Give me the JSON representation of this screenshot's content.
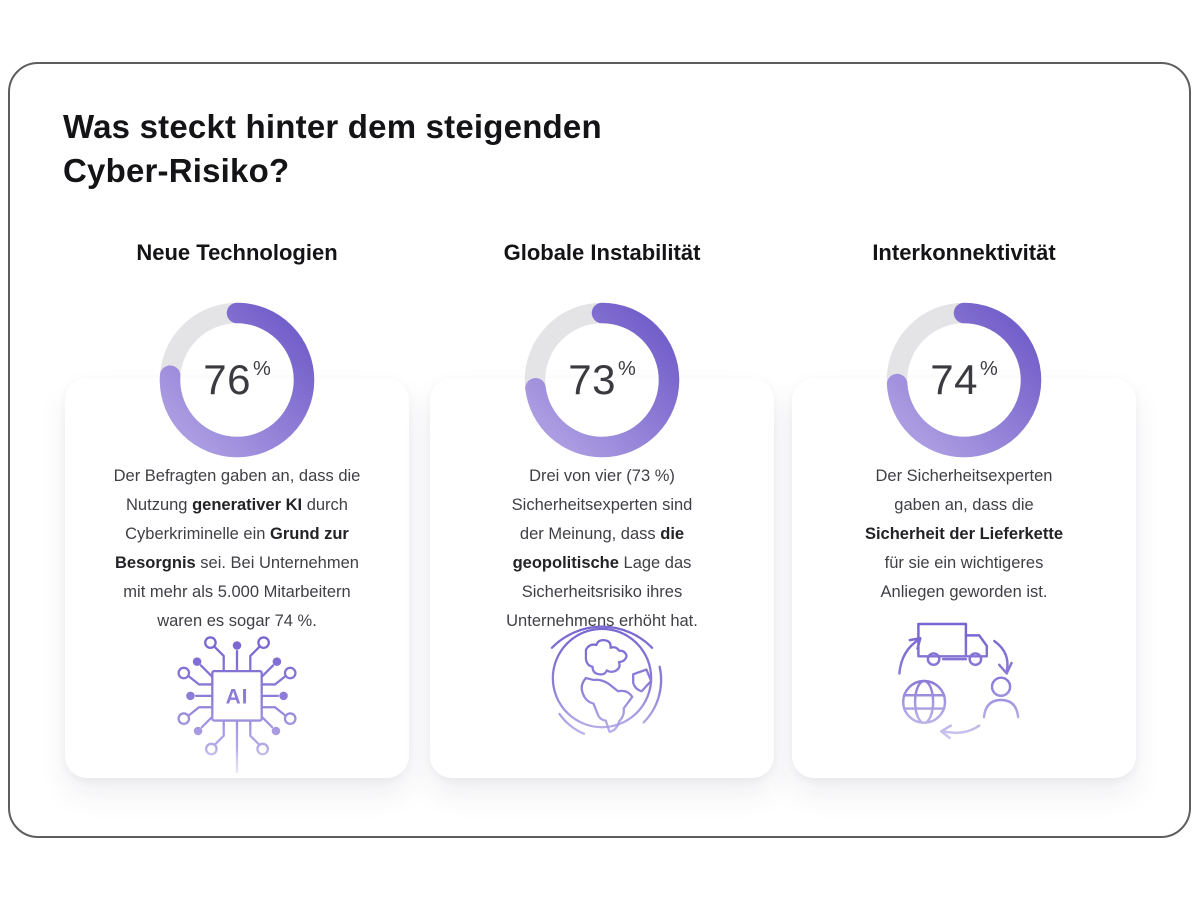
{
  "page": {
    "title": "Was steckt hinter dem steigenden\nCyber-Risiko?"
  },
  "colors": {
    "frame_border": "#5e5e5e",
    "heading": "#141416",
    "body": "#3f3f46",
    "body_bold": "#232327",
    "pct": "#3a3a40",
    "ring_track": "#e4e4e7",
    "ring_start": "#7460ca",
    "ring_end": "#ab9ce2",
    "icon_dark": "#7562cf",
    "icon_mid": "#8f7ed8",
    "icon_light": "#b5aae8",
    "icon_faint": "#d9d4f3"
  },
  "cards": [
    {
      "heading": "Neue Technologien",
      "percent": 76,
      "percent_suffix": "%",
      "icon": "ai-chip-icon",
      "ai_chip_label": "AI",
      "text_segments": [
        {
          "text": "Der Befragten gaben an, dass die\nNutzung "
        },
        {
          "text": "generativer KI",
          "bold": true
        },
        {
          "text": " durch\nCyberkriminelle ein "
        },
        {
          "text": "Grund zur\nBesorgnis",
          "bold": true
        },
        {
          "text": " sei. Bei Unternehmen\nmit mehr als 5.000 Mitarbeitern\nwaren es sogar 74 %."
        }
      ]
    },
    {
      "heading": "Globale Instabilität",
      "percent": 73,
      "percent_suffix": "%",
      "icon": "globe-icon",
      "text_segments": [
        {
          "text": "Drei von vier (73 %)\nSicherheitsexperten sind\nder Meinung, dass "
        },
        {
          "text": "die\ngeopolitische",
          "bold": true
        },
        {
          "text": " Lage das\nSicherheitsrisiko ihres\nUnternehmens erhöht hat."
        }
      ]
    },
    {
      "heading": "Interkonnektivität",
      "percent": 74,
      "percent_suffix": "%",
      "icon": "supply-chain-icon",
      "text_segments": [
        {
          "text": "Der Sicherheitsexperten\ngaben an, dass die\n"
        },
        {
          "text": "Sicherheit der Lieferkette",
          "bold": true
        },
        {
          "text": "\nfür sie ein wichtigeres\nAnliegen geworden ist."
        }
      ]
    }
  ],
  "chart_data": [
    {
      "type": "pie",
      "subtype": "donut",
      "title": "Neue Technologien",
      "labels": [
        "Anteil",
        "Rest"
      ],
      "values": [
        76,
        24
      ],
      "unit": "%",
      "center_label": "76%",
      "start_angle_deg": 0,
      "direction": "clockwise"
    },
    {
      "type": "pie",
      "subtype": "donut",
      "title": "Globale Instabilität",
      "labels": [
        "Anteil",
        "Rest"
      ],
      "values": [
        73,
        27
      ],
      "unit": "%",
      "center_label": "73%",
      "start_angle_deg": 0,
      "direction": "clockwise"
    },
    {
      "type": "pie",
      "subtype": "donut",
      "title": "Interkonnektivität",
      "labels": [
        "Anteil",
        "Rest"
      ],
      "values": [
        74,
        26
      ],
      "unit": "%",
      "center_label": "74%",
      "start_angle_deg": 0,
      "direction": "clockwise"
    }
  ]
}
